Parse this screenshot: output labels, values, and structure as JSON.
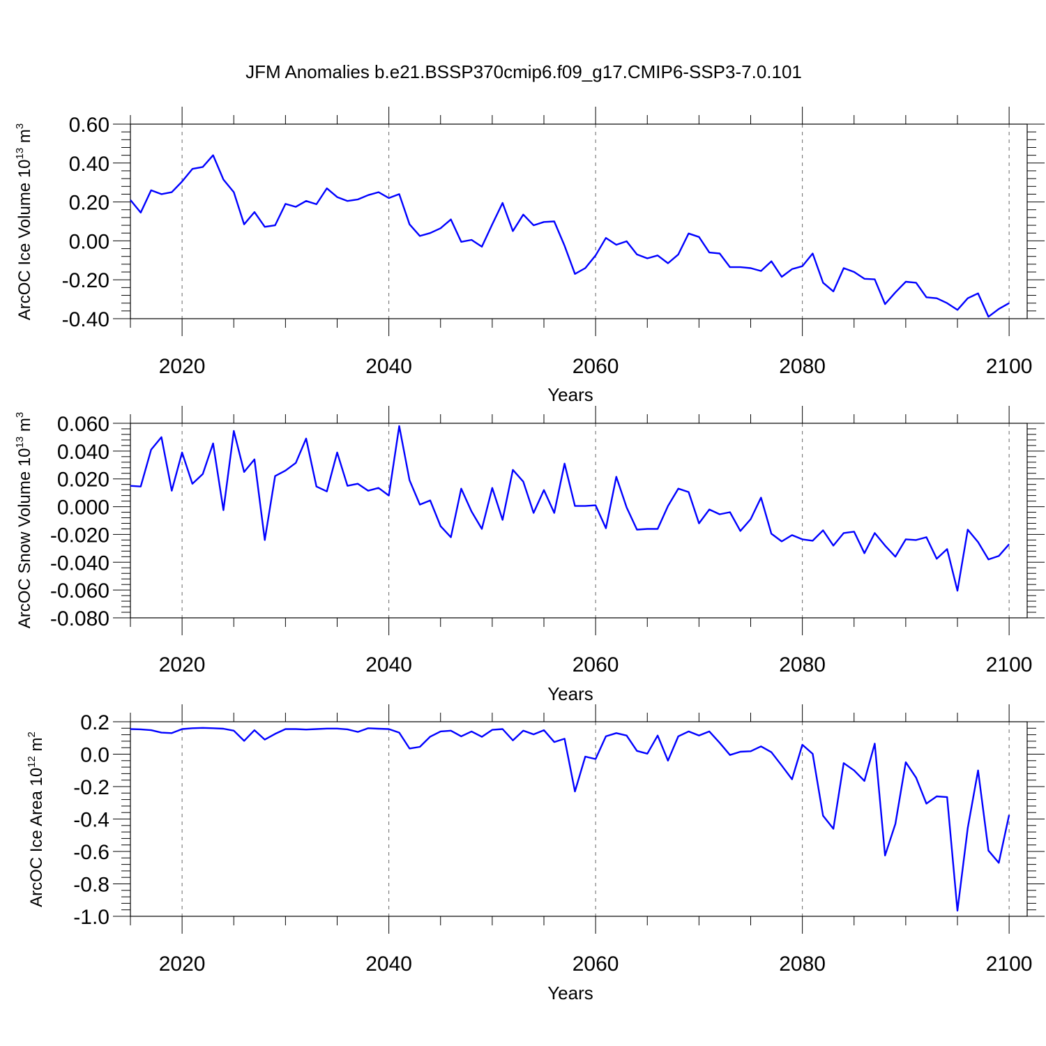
{
  "figure": {
    "title": "JFM Anomalies b.e21.BSSP370cmip6.f09_g17.CMIP6-SSP3-7.0.101"
  },
  "chart_data": [
    {
      "type": "line",
      "title": "",
      "xlabel": "Years",
      "ylabel": {
        "text": "ArcOC Ice Volume 10",
        "sup": "13",
        "unit": " m",
        "unit_sup": "3"
      },
      "xlim": [
        2015,
        2100
      ],
      "ylim": [
        -0.4,
        0.6
      ],
      "xticks": [
        2020,
        2040,
        2060,
        2080,
        2100
      ],
      "yticks": [
        "-0.40",
        "-0.20",
        "0.00",
        "0.20",
        "0.40",
        "0.60"
      ],
      "grid": "vertical dashed at major x ticks",
      "color": "#0000ff",
      "x_start": 2015,
      "values": [
        0.21,
        0.145,
        0.26,
        0.24,
        0.25,
        0.305,
        0.37,
        0.38,
        0.44,
        0.315,
        0.25,
        0.085,
        0.148,
        0.072,
        0.08,
        0.19,
        0.175,
        0.205,
        0.188,
        0.27,
        0.225,
        0.205,
        0.213,
        0.235,
        0.25,
        0.22,
        0.24,
        0.085,
        0.025,
        0.04,
        0.065,
        0.11,
        -0.005,
        0.005,
        -0.03,
        0.085,
        0.195,
        0.05,
        0.135,
        0.08,
        0.097,
        0.1,
        -0.025,
        -0.17,
        -0.14,
        -0.075,
        0.015,
        -0.02,
        -0.002,
        -0.07,
        -0.09,
        -0.075,
        -0.115,
        -0.07,
        0.038,
        0.02,
        -0.06,
        -0.065,
        -0.135,
        -0.135,
        -0.14,
        -0.155,
        -0.105,
        -0.185,
        -0.145,
        -0.13,
        -0.065,
        -0.215,
        -0.26,
        -0.14,
        -0.16,
        -0.195,
        -0.198,
        -0.325,
        -0.265,
        -0.21,
        -0.215,
        -0.29,
        -0.295,
        -0.32,
        -0.355,
        -0.295,
        -0.27,
        -0.39,
        -0.35,
        -0.32
      ]
    },
    {
      "type": "line",
      "title": "",
      "xlabel": "Years",
      "ylabel": {
        "text": "ArcOC Snow Volume 10",
        "sup": "13",
        "unit": " m",
        "unit_sup": "3"
      },
      "xlim": [
        2015,
        2100
      ],
      "ylim": [
        -0.08,
        0.06
      ],
      "xticks": [
        2020,
        2040,
        2060,
        2080,
        2100
      ],
      "yticks": [
        "-0.080",
        "-0.060",
        "-0.040",
        "-0.020",
        "0.000",
        "0.020",
        "0.040",
        "0.060"
      ],
      "grid": "vertical dashed at major x ticks",
      "color": "#0000ff",
      "x_start": 2015,
      "values": [
        0.015,
        0.0145,
        0.041,
        0.05,
        0.0115,
        0.039,
        0.0165,
        0.0235,
        0.0455,
        -0.0025,
        0.0545,
        0.025,
        0.034,
        -0.024,
        0.022,
        0.026,
        0.0315,
        0.049,
        0.0145,
        0.011,
        0.039,
        0.015,
        0.0165,
        0.0115,
        0.0135,
        0.008,
        0.058,
        0.019,
        0.0015,
        0.0045,
        -0.014,
        -0.022,
        0.013,
        -0.0035,
        -0.016,
        0.0135,
        -0.0095,
        0.0265,
        0.018,
        -0.0045,
        0.012,
        -0.0045,
        0.031,
        0.0005,
        0.0005,
        0.001,
        -0.0155,
        0.0215,
        -0.0005,
        -0.0165,
        -0.016,
        -0.016,
        0.0005,
        0.013,
        0.0105,
        -0.012,
        -0.002,
        -0.0055,
        -0.004,
        -0.0175,
        -0.009,
        0.0065,
        -0.0195,
        -0.025,
        -0.0205,
        -0.0235,
        -0.0245,
        -0.017,
        -0.028,
        -0.019,
        -0.018,
        -0.0335,
        -0.019,
        -0.028,
        -0.036,
        -0.0235,
        -0.024,
        -0.022,
        -0.0375,
        -0.0305,
        -0.0605,
        -0.0165,
        -0.0255,
        -0.038,
        -0.0355,
        -0.027
      ]
    },
    {
      "type": "line",
      "title": "",
      "xlabel": "Years",
      "ylabel": {
        "text": "ArcOC Ice Area 10",
        "sup": "12",
        "unit": " m",
        "unit_sup": "2"
      },
      "xlim": [
        2015,
        2100
      ],
      "ylim": [
        -1.0,
        0.2
      ],
      "xticks": [
        2020,
        2040,
        2060,
        2080,
        2100
      ],
      "yticks": [
        "-1.0",
        "-0.8",
        "-0.6",
        "-0.4",
        "-0.2",
        "0.0",
        "0.2"
      ],
      "grid": "vertical dashed at major x ticks",
      "color": "#0000ff",
      "x_start": 2015,
      "values": [
        0.155,
        0.153,
        0.148,
        0.133,
        0.13,
        0.155,
        0.16,
        0.162,
        0.16,
        0.157,
        0.145,
        0.082,
        0.148,
        0.09,
        0.125,
        0.155,
        0.155,
        0.152,
        0.155,
        0.158,
        0.158,
        0.153,
        0.137,
        0.16,
        0.157,
        0.155,
        0.133,
        0.035,
        0.045,
        0.108,
        0.14,
        0.145,
        0.11,
        0.14,
        0.107,
        0.15,
        0.155,
        0.085,
        0.145,
        0.122,
        0.148,
        0.075,
        0.095,
        -0.23,
        -0.015,
        -0.03,
        0.11,
        0.13,
        0.115,
        0.02,
        0.003,
        0.115,
        -0.04,
        0.11,
        0.14,
        0.115,
        0.14,
        0.07,
        -0.005,
        0.015,
        0.018,
        0.048,
        0.012,
        -0.07,
        -0.155,
        0.058,
        0.002,
        -0.38,
        -0.46,
        -0.055,
        -0.1,
        -0.165,
        0.065,
        -0.625,
        -0.43,
        -0.05,
        -0.145,
        -0.305,
        -0.26,
        -0.265,
        -0.965,
        -0.455,
        -0.1,
        -0.595,
        -0.67,
        -0.375
      ]
    }
  ]
}
